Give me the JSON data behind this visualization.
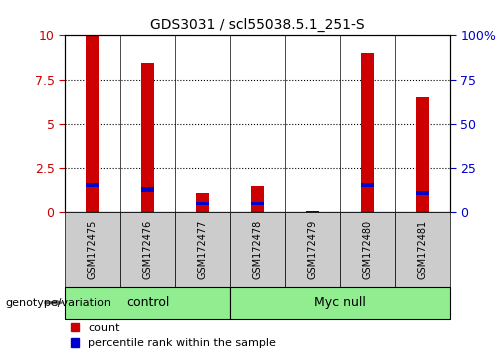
{
  "title": "GDS3031 / scl55038.5.1_251-S",
  "samples": [
    "GSM172475",
    "GSM172476",
    "GSM172477",
    "GSM172478",
    "GSM172479",
    "GSM172480",
    "GSM172481"
  ],
  "red_values": [
    9.95,
    8.45,
    1.1,
    1.5,
    0.05,
    9.0,
    6.5
  ],
  "blue_values": [
    1.55,
    1.3,
    0.5,
    0.5,
    0.02,
    1.55,
    1.1
  ],
  "blue_heights": [
    0.25,
    0.25,
    0.18,
    0.18,
    0.1,
    0.25,
    0.25
  ],
  "groups": [
    {
      "label": "control",
      "start": 0,
      "end": 3
    },
    {
      "label": "Myc null",
      "start": 3,
      "end": 7
    }
  ],
  "bar_color_red": "#CC0000",
  "bar_color_blue": "#0000CC",
  "ylim_left": [
    0,
    10
  ],
  "ylim_right": [
    0,
    100
  ],
  "yticks_left": [
    0,
    2.5,
    5.0,
    7.5,
    10
  ],
  "yticks_right": [
    0,
    25,
    50,
    75,
    100
  ],
  "ytick_labels_left": [
    "0",
    "2.5",
    "5",
    "7.5",
    "10"
  ],
  "ytick_labels_right": [
    "0",
    "25",
    "50",
    "75",
    "100%"
  ],
  "left_axis_color": "#CC0000",
  "right_axis_color": "#0000CC",
  "legend_items": [
    "count",
    "percentile rank within the sample"
  ],
  "legend_colors": [
    "#CC0000",
    "#0000CC"
  ],
  "genotype_label": "genotype/variation",
  "bar_width": 0.25,
  "grid_color": "black",
  "grid_linestyle": "dotted",
  "group_light_green": "#90EE90",
  "sample_box_gray": "#CCCCCC"
}
